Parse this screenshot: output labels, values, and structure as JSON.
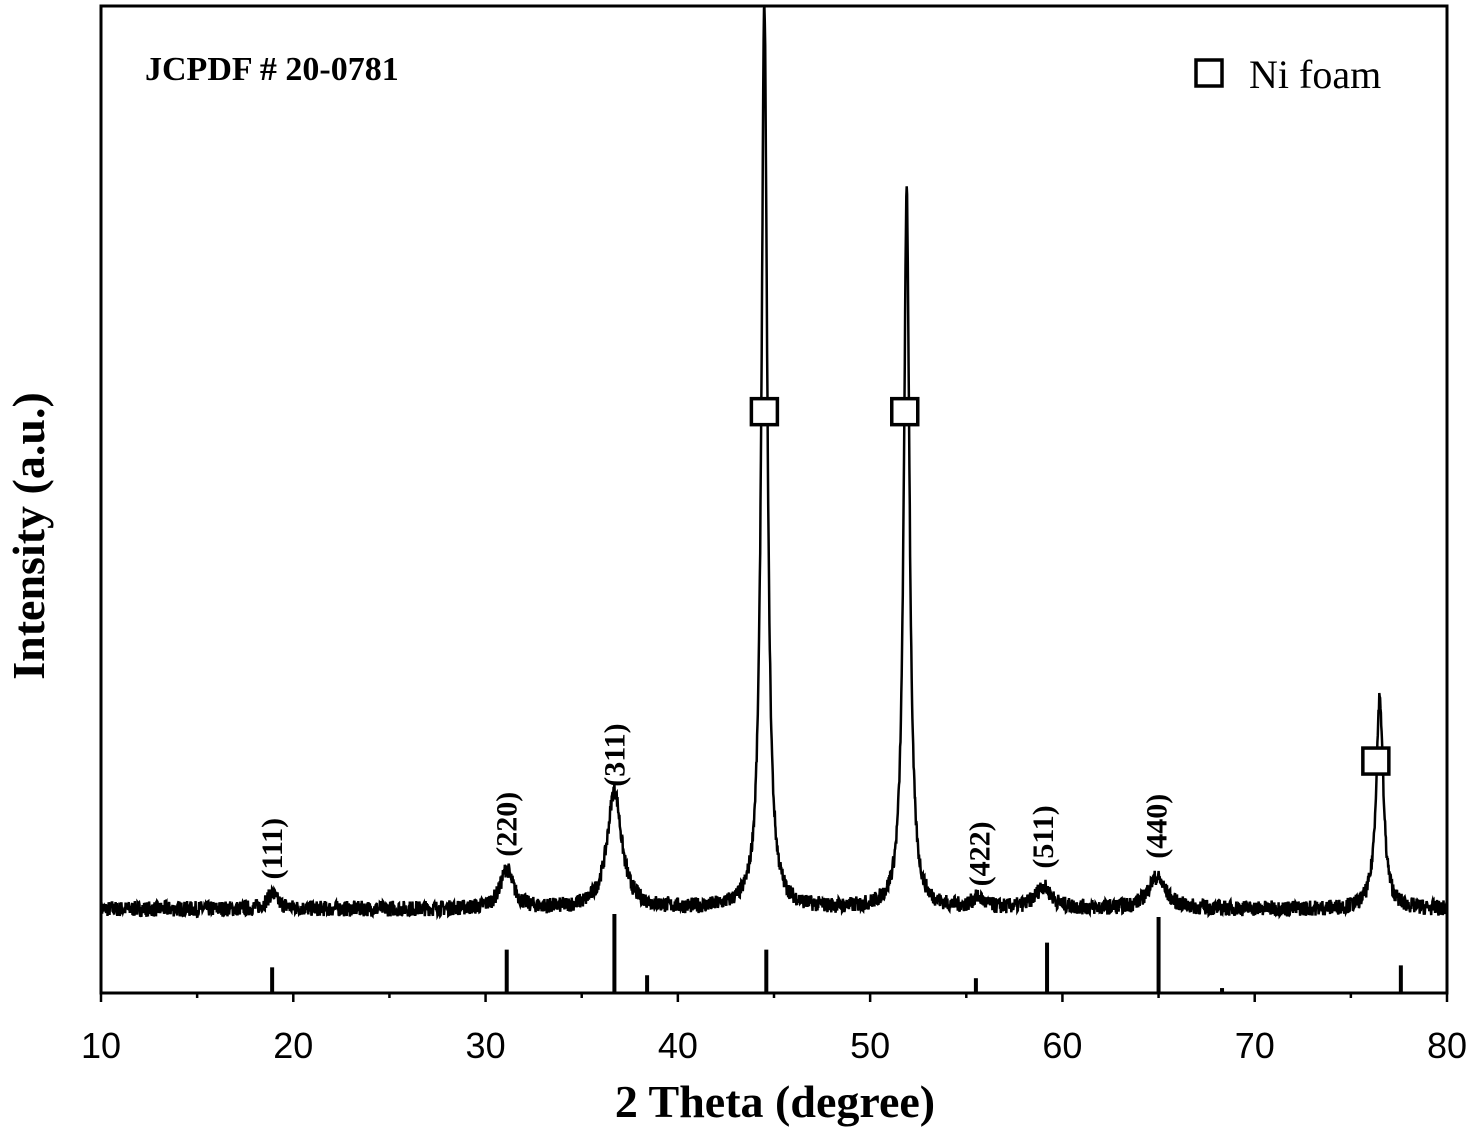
{
  "chart_data": {
    "type": "line",
    "xlabel": "2 Theta (degree)",
    "ylabel": "Intensity (a.u.)",
    "xlim": [
      10,
      80
    ],
    "x_ticks": [
      "10",
      "20",
      "30",
      "40",
      "50",
      "60",
      "70",
      "80"
    ],
    "y_ticks": [],
    "ylim": [
      0,
      100
    ],
    "annotation": "JCPDF # 20-0781",
    "legend": {
      "symbol": "square-marker",
      "label": "Ni foam",
      "position": "top-right"
    },
    "series": [
      {
        "type": "xrd-pattern",
        "baseline": 8.5,
        "peaks": [
          {
            "x": 18.9,
            "height": 1.5,
            "width": 0.35
          },
          {
            "x": 31.1,
            "height": 4.0,
            "width": 0.4
          },
          {
            "x": 36.7,
            "height": 12.0,
            "width": 0.45
          },
          {
            "x": 44.5,
            "height": 91.5,
            "width": 0.18
          },
          {
            "x": 51.9,
            "height": 72.5,
            "width": 0.18
          },
          {
            "x": 55.6,
            "height": 1.0,
            "width": 0.35
          },
          {
            "x": 59.0,
            "height": 2.2,
            "width": 0.5
          },
          {
            "x": 64.9,
            "height": 3.2,
            "width": 0.55
          },
          {
            "x": 76.5,
            "height": 21.5,
            "width": 0.22
          }
        ]
      }
    ],
    "reference_lines": [
      {
        "x": 18.9,
        "height": 2.6
      },
      {
        "x": 31.1,
        "height": 4.4
      },
      {
        "x": 36.7,
        "height": 8.0
      },
      {
        "x": 38.4,
        "height": 1.8
      },
      {
        "x": 44.6,
        "height": 4.4
      },
      {
        "x": 55.5,
        "height": 1.5
      },
      {
        "x": 59.2,
        "height": 5.1
      },
      {
        "x": 65.0,
        "height": 7.7
      },
      {
        "x": 68.3,
        "height": 0.5
      },
      {
        "x": 77.6,
        "height": 2.8
      }
    ],
    "peak_labels": [
      {
        "text": "(111)",
        "x": 18.9,
        "y": 11.5
      },
      {
        "text": "(220)",
        "x": 31.1,
        "y": 13.8
      },
      {
        "text": "(311)",
        "x": 36.7,
        "y": 20.9
      },
      {
        "text": "(422)",
        "x": 55.7,
        "y": 10.8
      },
      {
        "text": "(511)",
        "x": 59.0,
        "y": 12.6
      },
      {
        "text": "(440)",
        "x": 64.9,
        "y": 13.6
      }
    ],
    "ni_markers": [
      {
        "x": 44.5,
        "y": 58.9
      },
      {
        "x": 51.8,
        "y": 58.9
      },
      {
        "x": 76.3,
        "y": 23.5
      }
    ]
  }
}
